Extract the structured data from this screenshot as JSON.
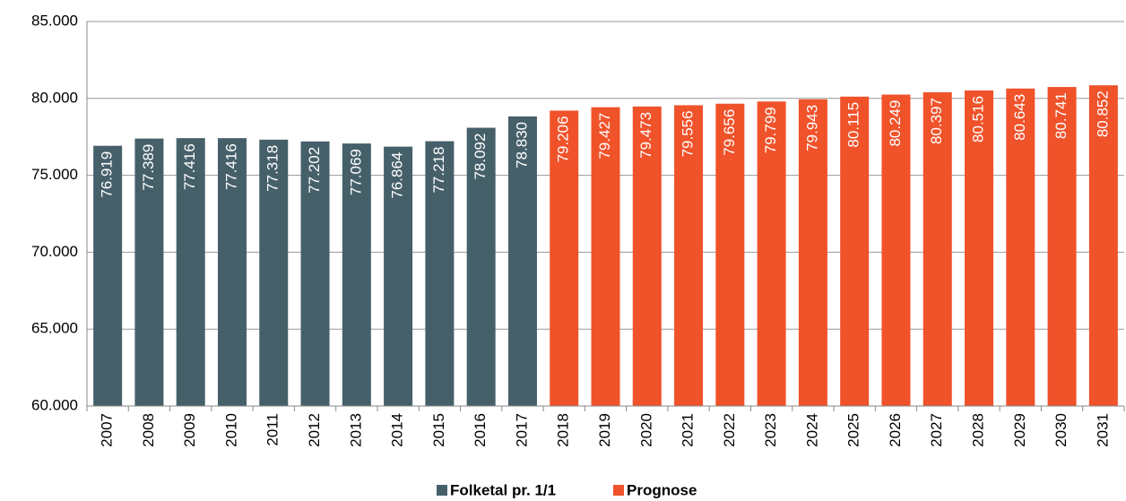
{
  "chart_data": {
    "type": "bar",
    "categories": [
      "2007",
      "2008",
      "2009",
      "2010",
      "2011",
      "2012",
      "2013",
      "2014",
      "2015",
      "2016",
      "2017",
      "2018",
      "2019",
      "2020",
      "2021",
      "2022",
      "2023",
      "2024",
      "2025",
      "2026",
      "2027",
      "2028",
      "2029",
      "2030",
      "2031"
    ],
    "series": [
      {
        "name": "Folketal pr. 1/1",
        "color": "#46606a",
        "values": [
          76919,
          77389,
          77416,
          77416,
          77318,
          77202,
          77069,
          76864,
          77218,
          78092,
          78830,
          null,
          null,
          null,
          null,
          null,
          null,
          null,
          null,
          null,
          null,
          null,
          null,
          null,
          null
        ],
        "value_labels": [
          "76.919",
          "77.389",
          "77.416",
          "77.416",
          "77.318",
          "77.202",
          "77.069",
          "76.864",
          "77.218",
          "78.092",
          "78.830",
          null,
          null,
          null,
          null,
          null,
          null,
          null,
          null,
          null,
          null,
          null,
          null,
          null,
          null
        ]
      },
      {
        "name": "Prognose",
        "color": "#f0522a",
        "values": [
          null,
          null,
          null,
          null,
          null,
          null,
          null,
          null,
          null,
          null,
          null,
          79206,
          79427,
          79473,
          79556,
          79656,
          79799,
          79943,
          80115,
          80249,
          80397,
          80516,
          80643,
          80741,
          80852
        ],
        "value_labels": [
          null,
          null,
          null,
          null,
          null,
          null,
          null,
          null,
          null,
          null,
          null,
          "79.206",
          "79.427",
          "79.473",
          "79.556",
          "79.656",
          "79.799",
          "79.943",
          "80.115",
          "80.249",
          "80.397",
          "80.516",
          "80.643",
          "80.741",
          "80.852"
        ]
      }
    ],
    "ylim": [
      60000,
      85000
    ],
    "yticks": [
      {
        "value": 60000,
        "label": "60.000"
      },
      {
        "value": 65000,
        "label": "65.000"
      },
      {
        "value": 70000,
        "label": "70.000"
      },
      {
        "value": 75000,
        "label": "75.000"
      },
      {
        "value": 80000,
        "label": "80.000"
      },
      {
        "value": 85000,
        "label": "85.000"
      }
    ],
    "grid": true,
    "legend": "bottom"
  }
}
